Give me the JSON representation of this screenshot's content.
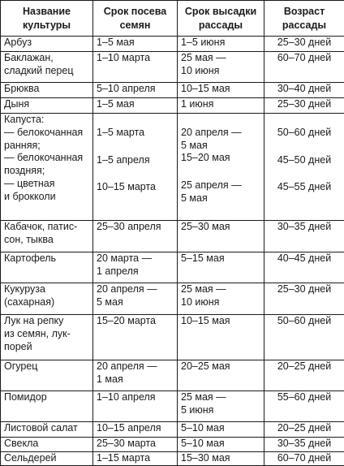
{
  "headers": {
    "crop": "Название культуры",
    "sowing": "Срок посева семян",
    "planting": "Срок высадки рассады",
    "age": "Возраст рассады"
  },
  "rows": [
    {
      "crop": [
        "Арбуз"
      ],
      "sowing": [
        "1–5 мая"
      ],
      "planting": [
        "1–5 июня"
      ],
      "age": [
        "25–30 дней"
      ]
    },
    {
      "crop": [
        "Баклажан,",
        "сладкий перец"
      ],
      "sowing": [
        "1–10 марта"
      ],
      "planting": [
        "25 мая —",
        "10 июня"
      ],
      "age": [
        "60–70 дней"
      ]
    },
    {
      "crop": [
        "Брюква"
      ],
      "sowing": [
        "5–10 апреля"
      ],
      "planting": [
        "10–15 мая"
      ],
      "age": [
        "30–40 дней"
      ]
    },
    {
      "crop": [
        "Дыня"
      ],
      "sowing": [
        "1–5 мая"
      ],
      "planting": [
        "1 июня"
      ],
      "age": [
        "25–30 дней"
      ]
    },
    {
      "crop": [
        "Капуста:",
        "— белокочанная",
        "ранняя;",
        "— белокочанная",
        "поздняя;",
        "— цветная",
        "и брокколи"
      ],
      "sowing": [
        "1–5 марта",
        "1–5 апреля",
        "10–15 марта"
      ],
      "planting": [
        "20 апреля —",
        "5 мая",
        "15–20 мая",
        "25 апреля —",
        "5 мая"
      ],
      "age": [
        "50–60 дней",
        "45–50 дней",
        "45–55 дней"
      ]
    },
    {
      "crop": [
        "Кабачок, патис-",
        "сон, тыква"
      ],
      "sowing": [
        "25–30 апреля"
      ],
      "planting": [
        "25–30 мая"
      ],
      "age": [
        "30–35 дней"
      ]
    },
    {
      "crop": [
        "Картофель"
      ],
      "sowing": [
        "20 марта —",
        "1 апреля"
      ],
      "planting": [
        "5–15 мая"
      ],
      "age": [
        "40–45 дней"
      ]
    },
    {
      "crop": [
        "Кукуруза",
        "(сахарная)"
      ],
      "sowing": [
        "20 апреля —",
        "5 мая"
      ],
      "planting": [
        "25 мая —",
        "10 июня"
      ],
      "age": [
        "25–30 дней"
      ]
    },
    {
      "crop": [
        "Лук на репку",
        "из семян, лук-",
        "порей"
      ],
      "sowing": [
        "15–20 марта"
      ],
      "planting": [
        "10–15 мая"
      ],
      "age": [
        "50–60 дней"
      ]
    },
    {
      "crop": [
        "Огурец"
      ],
      "sowing": [
        "20 апреля —",
        "1 мая"
      ],
      "planting": [
        "20–25 мая"
      ],
      "age": [
        "20–25 дней"
      ]
    },
    {
      "crop": [
        "Помидор"
      ],
      "sowing": [
        "1–10 апреля"
      ],
      "planting": [
        "25 мая —",
        "5 июня"
      ],
      "age": [
        "55–60 дней"
      ]
    },
    {
      "crop": [
        "Листовой салат"
      ],
      "sowing": [
        "10–15 апреля"
      ],
      "planting": [
        "5–10 мая"
      ],
      "age": [
        "20–25 дней"
      ]
    },
    {
      "crop": [
        "Свекла"
      ],
      "sowing": [
        "25–30 марта"
      ],
      "planting": [
        "5–10 мая"
      ],
      "age": [
        "30–35 дней"
      ]
    },
    {
      "crop": [
        "Сельдерей"
      ],
      "sowing": [
        "1–15 марта"
      ],
      "planting": [
        "15–30 мая"
      ],
      "age": [
        "60–70 дней"
      ]
    }
  ]
}
